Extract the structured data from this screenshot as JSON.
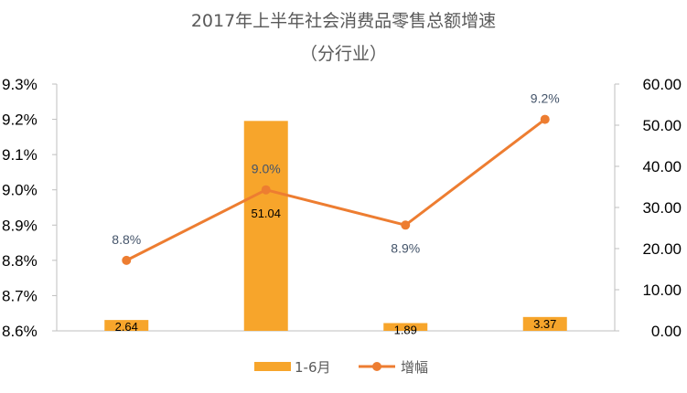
{
  "chart_data": {
    "type": "bar",
    "title": "2017年上半年社会消费品零售总额增速",
    "subtitle": "（分行业）",
    "categories": [
      "",
      "",
      "",
      ""
    ],
    "series": [
      {
        "name": "1-6月",
        "type": "bar",
        "axis": "right",
        "values": [
          2.64,
          51.04,
          1.89,
          3.37
        ],
        "labels": [
          "2.64",
          "51.04",
          "1.89",
          "3.37"
        ],
        "color": "#f7a52b"
      },
      {
        "name": "增幅",
        "type": "line",
        "axis": "left",
        "values": [
          8.8,
          9.0,
          8.9,
          9.2
        ],
        "labels": [
          "8.8%",
          "9.0%",
          "8.9%",
          "9.2%"
        ],
        "color": "#ed7d31"
      }
    ],
    "y_left": {
      "min": 8.6,
      "max": 9.3,
      "ticks": [
        "8.6%",
        "8.7%",
        "8.8%",
        "8.9%",
        "9.0%",
        "9.1%",
        "9.2%",
        "9.3%"
      ]
    },
    "y_right": {
      "min": 0,
      "max": 60,
      "ticks": [
        "0.00",
        "10.00",
        "20.00",
        "30.00",
        "40.00",
        "50.00",
        "60.00"
      ]
    },
    "grid": false,
    "legend": "bottom"
  }
}
